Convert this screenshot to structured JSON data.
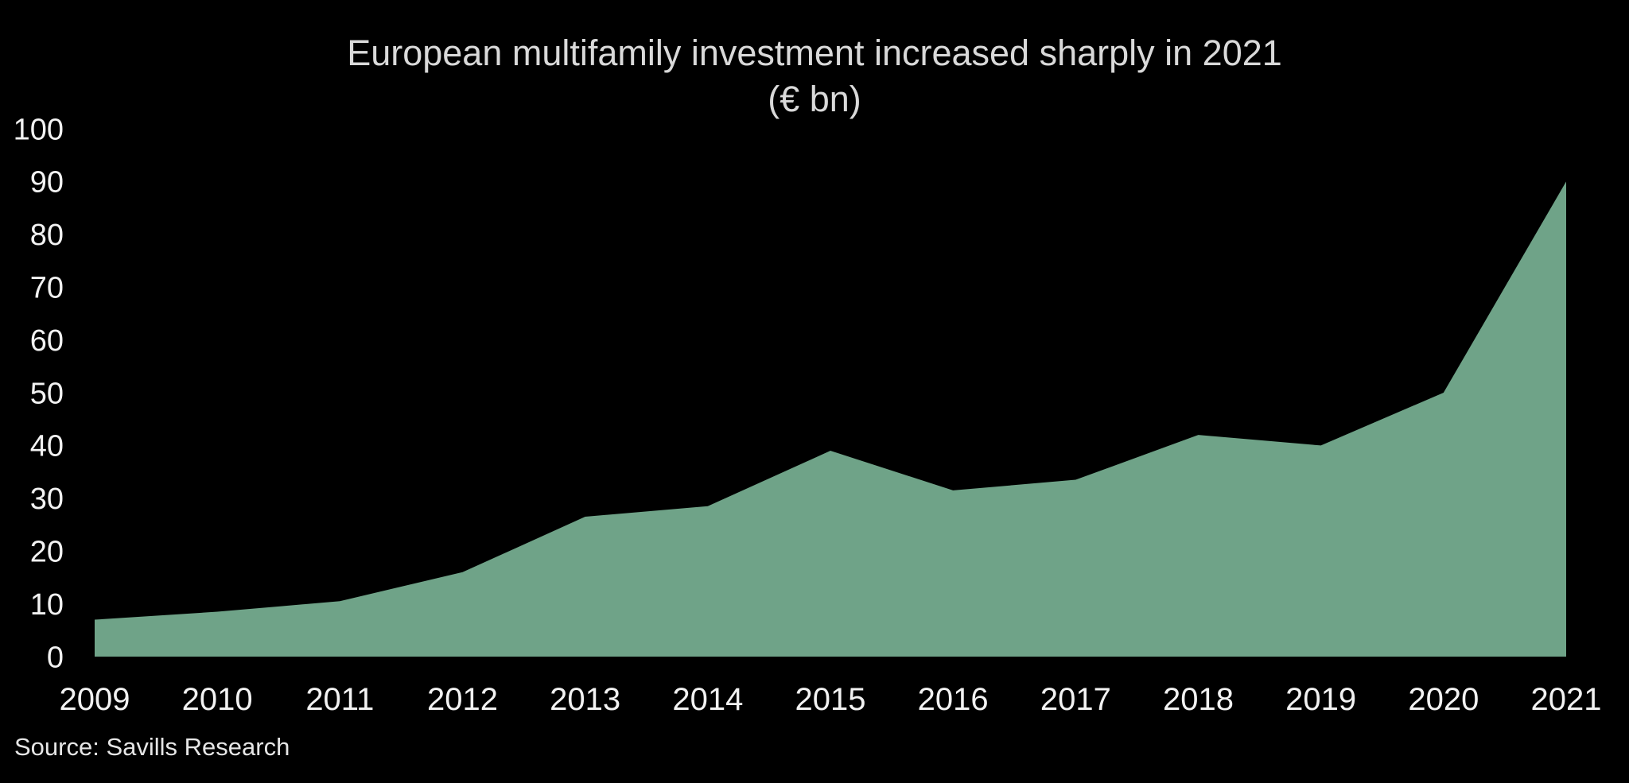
{
  "title": {
    "line1": "European multifamily investment increased sharply in 2021",
    "line2": "(€ bn)"
  },
  "source": "Source: Savills Research",
  "colors": {
    "background": "#000000",
    "area": "#6FA388",
    "title_text": "#D9D9D9",
    "axis_text": "#F2F2F2",
    "source_text": "#E6E6E6"
  },
  "chart_data": {
    "type": "area",
    "title": "European multifamily investment increased sharply in 2021",
    "subtitle": "(€ bn)",
    "x": [
      2009,
      2010,
      2011,
      2012,
      2013,
      2014,
      2015,
      2016,
      2017,
      2018,
      2019,
      2020,
      2021
    ],
    "values": [
      7,
      8.5,
      10.5,
      16,
      26.5,
      28.5,
      39,
      31.5,
      33.5,
      42,
      40,
      50,
      90
    ],
    "ylim": [
      0,
      100
    ],
    "ytick_step": 10,
    "xlabel": "",
    "ylabel": "",
    "grid": false,
    "legend": "none",
    "source": "Source: Savills Research"
  }
}
